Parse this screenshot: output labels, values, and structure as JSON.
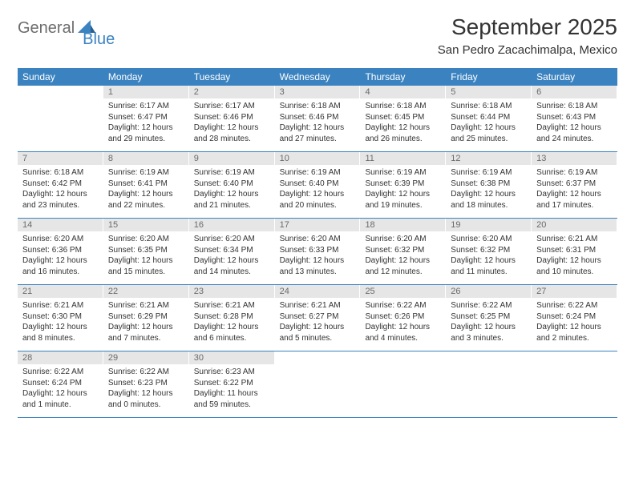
{
  "brand": {
    "part1": "General",
    "part2": "Blue"
  },
  "title": "September 2025",
  "location": "San Pedro Zacachimalpa, Mexico",
  "colors": {
    "header_bg": "#3b83c0",
    "header_text": "#ffffff",
    "daynum_bg": "#e6e6e6",
    "daynum_text": "#6a6a6a",
    "body_text": "#333333",
    "brand_gray": "#6c6c6c",
    "brand_blue": "#3b83c0"
  },
  "weekdays": [
    "Sunday",
    "Monday",
    "Tuesday",
    "Wednesday",
    "Thursday",
    "Friday",
    "Saturday"
  ],
  "weeks": [
    [
      null,
      {
        "n": "1",
        "sr": "Sunrise: 6:17 AM",
        "ss": "Sunset: 6:47 PM",
        "d1": "Daylight: 12 hours",
        "d2": "and 29 minutes."
      },
      {
        "n": "2",
        "sr": "Sunrise: 6:17 AM",
        "ss": "Sunset: 6:46 PM",
        "d1": "Daylight: 12 hours",
        "d2": "and 28 minutes."
      },
      {
        "n": "3",
        "sr": "Sunrise: 6:18 AM",
        "ss": "Sunset: 6:46 PM",
        "d1": "Daylight: 12 hours",
        "d2": "and 27 minutes."
      },
      {
        "n": "4",
        "sr": "Sunrise: 6:18 AM",
        "ss": "Sunset: 6:45 PM",
        "d1": "Daylight: 12 hours",
        "d2": "and 26 minutes."
      },
      {
        "n": "5",
        "sr": "Sunrise: 6:18 AM",
        "ss": "Sunset: 6:44 PM",
        "d1": "Daylight: 12 hours",
        "d2": "and 25 minutes."
      },
      {
        "n": "6",
        "sr": "Sunrise: 6:18 AM",
        "ss": "Sunset: 6:43 PM",
        "d1": "Daylight: 12 hours",
        "d2": "and 24 minutes."
      }
    ],
    [
      {
        "n": "7",
        "sr": "Sunrise: 6:18 AM",
        "ss": "Sunset: 6:42 PM",
        "d1": "Daylight: 12 hours",
        "d2": "and 23 minutes."
      },
      {
        "n": "8",
        "sr": "Sunrise: 6:19 AM",
        "ss": "Sunset: 6:41 PM",
        "d1": "Daylight: 12 hours",
        "d2": "and 22 minutes."
      },
      {
        "n": "9",
        "sr": "Sunrise: 6:19 AM",
        "ss": "Sunset: 6:40 PM",
        "d1": "Daylight: 12 hours",
        "d2": "and 21 minutes."
      },
      {
        "n": "10",
        "sr": "Sunrise: 6:19 AM",
        "ss": "Sunset: 6:40 PM",
        "d1": "Daylight: 12 hours",
        "d2": "and 20 minutes."
      },
      {
        "n": "11",
        "sr": "Sunrise: 6:19 AM",
        "ss": "Sunset: 6:39 PM",
        "d1": "Daylight: 12 hours",
        "d2": "and 19 minutes."
      },
      {
        "n": "12",
        "sr": "Sunrise: 6:19 AM",
        "ss": "Sunset: 6:38 PM",
        "d1": "Daylight: 12 hours",
        "d2": "and 18 minutes."
      },
      {
        "n": "13",
        "sr": "Sunrise: 6:19 AM",
        "ss": "Sunset: 6:37 PM",
        "d1": "Daylight: 12 hours",
        "d2": "and 17 minutes."
      }
    ],
    [
      {
        "n": "14",
        "sr": "Sunrise: 6:20 AM",
        "ss": "Sunset: 6:36 PM",
        "d1": "Daylight: 12 hours",
        "d2": "and 16 minutes."
      },
      {
        "n": "15",
        "sr": "Sunrise: 6:20 AM",
        "ss": "Sunset: 6:35 PM",
        "d1": "Daylight: 12 hours",
        "d2": "and 15 minutes."
      },
      {
        "n": "16",
        "sr": "Sunrise: 6:20 AM",
        "ss": "Sunset: 6:34 PM",
        "d1": "Daylight: 12 hours",
        "d2": "and 14 minutes."
      },
      {
        "n": "17",
        "sr": "Sunrise: 6:20 AM",
        "ss": "Sunset: 6:33 PM",
        "d1": "Daylight: 12 hours",
        "d2": "and 13 minutes."
      },
      {
        "n": "18",
        "sr": "Sunrise: 6:20 AM",
        "ss": "Sunset: 6:32 PM",
        "d1": "Daylight: 12 hours",
        "d2": "and 12 minutes."
      },
      {
        "n": "19",
        "sr": "Sunrise: 6:20 AM",
        "ss": "Sunset: 6:32 PM",
        "d1": "Daylight: 12 hours",
        "d2": "and 11 minutes."
      },
      {
        "n": "20",
        "sr": "Sunrise: 6:21 AM",
        "ss": "Sunset: 6:31 PM",
        "d1": "Daylight: 12 hours",
        "d2": "and 10 minutes."
      }
    ],
    [
      {
        "n": "21",
        "sr": "Sunrise: 6:21 AM",
        "ss": "Sunset: 6:30 PM",
        "d1": "Daylight: 12 hours",
        "d2": "and 8 minutes."
      },
      {
        "n": "22",
        "sr": "Sunrise: 6:21 AM",
        "ss": "Sunset: 6:29 PM",
        "d1": "Daylight: 12 hours",
        "d2": "and 7 minutes."
      },
      {
        "n": "23",
        "sr": "Sunrise: 6:21 AM",
        "ss": "Sunset: 6:28 PM",
        "d1": "Daylight: 12 hours",
        "d2": "and 6 minutes."
      },
      {
        "n": "24",
        "sr": "Sunrise: 6:21 AM",
        "ss": "Sunset: 6:27 PM",
        "d1": "Daylight: 12 hours",
        "d2": "and 5 minutes."
      },
      {
        "n": "25",
        "sr": "Sunrise: 6:22 AM",
        "ss": "Sunset: 6:26 PM",
        "d1": "Daylight: 12 hours",
        "d2": "and 4 minutes."
      },
      {
        "n": "26",
        "sr": "Sunrise: 6:22 AM",
        "ss": "Sunset: 6:25 PM",
        "d1": "Daylight: 12 hours",
        "d2": "and 3 minutes."
      },
      {
        "n": "27",
        "sr": "Sunrise: 6:22 AM",
        "ss": "Sunset: 6:24 PM",
        "d1": "Daylight: 12 hours",
        "d2": "and 2 minutes."
      }
    ],
    [
      {
        "n": "28",
        "sr": "Sunrise: 6:22 AM",
        "ss": "Sunset: 6:24 PM",
        "d1": "Daylight: 12 hours",
        "d2": "and 1 minute."
      },
      {
        "n": "29",
        "sr": "Sunrise: 6:22 AM",
        "ss": "Sunset: 6:23 PM",
        "d1": "Daylight: 12 hours",
        "d2": "and 0 minutes."
      },
      {
        "n": "30",
        "sr": "Sunrise: 6:23 AM",
        "ss": "Sunset: 6:22 PM",
        "d1": "Daylight: 11 hours",
        "d2": "and 59 minutes."
      },
      null,
      null,
      null,
      null
    ]
  ]
}
